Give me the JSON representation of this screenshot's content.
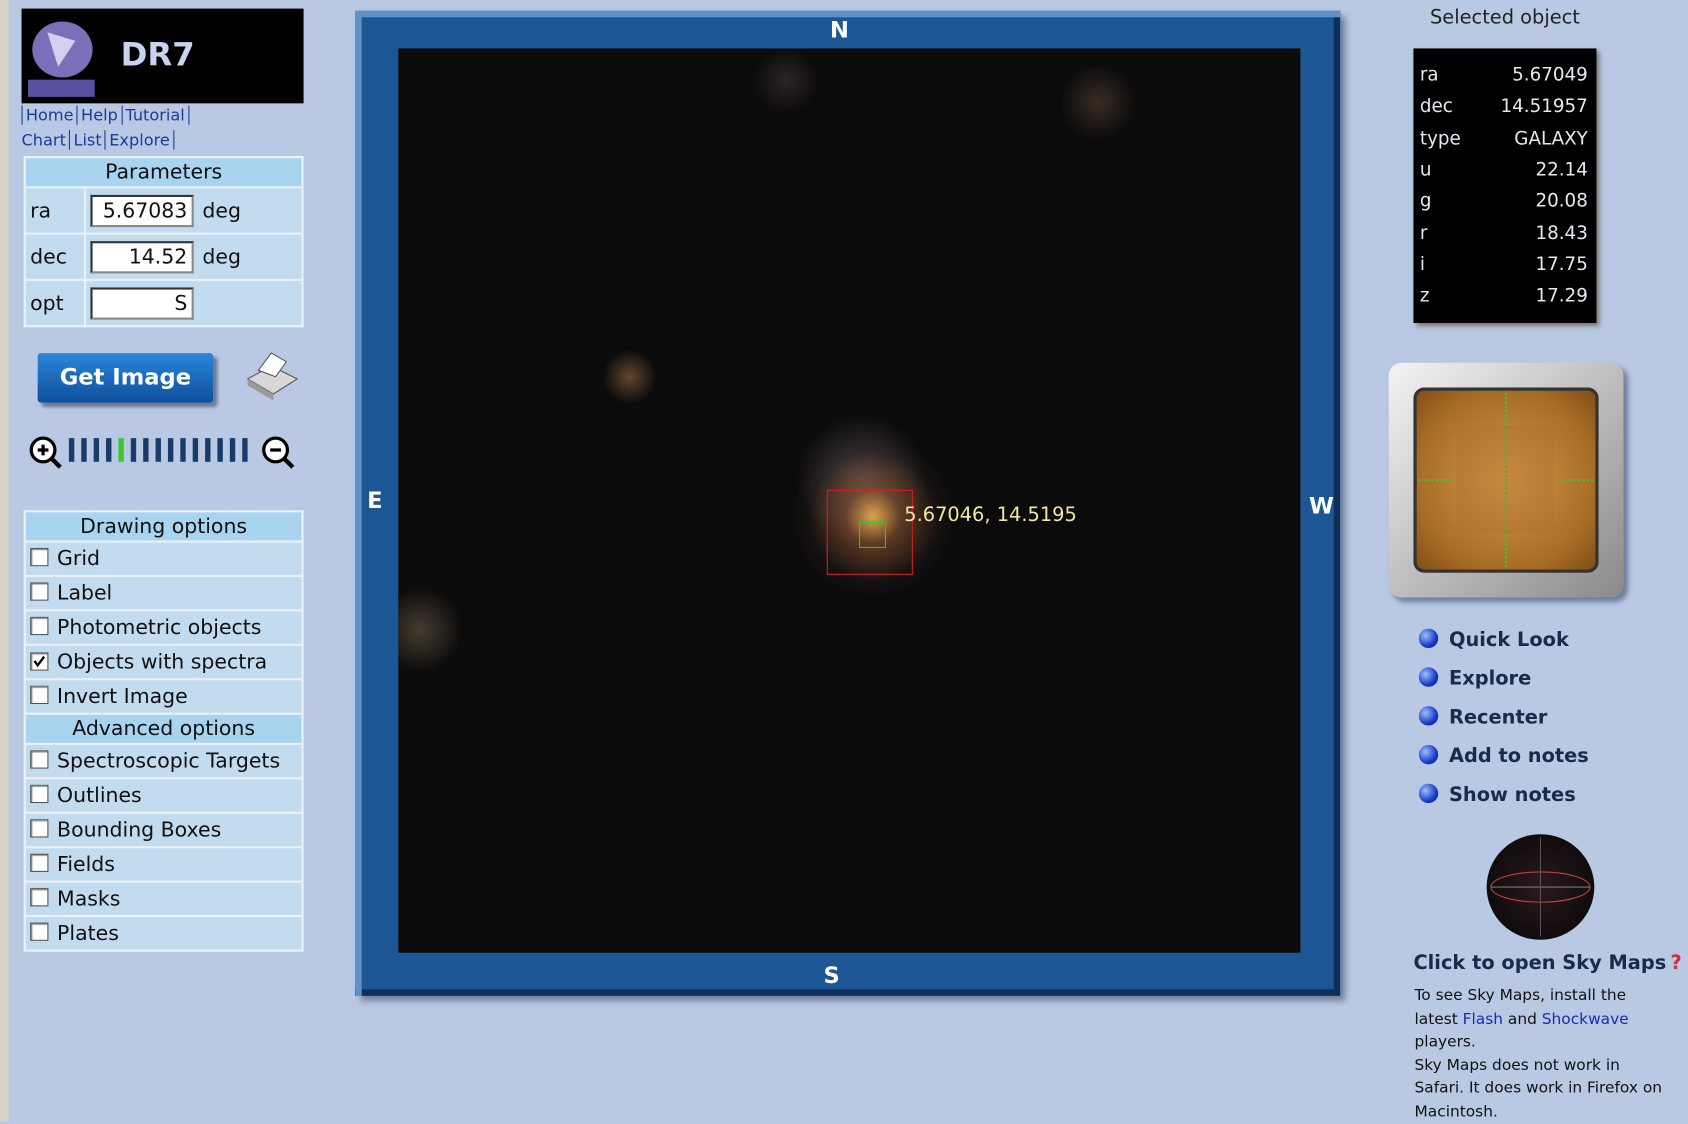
{
  "header": {
    "logo": "DR7",
    "link_rows": [
      [
        "Home",
        "Help",
        "Tutorial"
      ],
      [
        "Chart",
        "List",
        "Explore"
      ]
    ]
  },
  "parameters": {
    "title": "Parameters",
    "rows": [
      {
        "label": "ra",
        "value": "5.67083",
        "unit": "deg"
      },
      {
        "label": "dec",
        "value": "14.52",
        "unit": "deg"
      },
      {
        "label": "opt",
        "value": "S"
      }
    ]
  },
  "get_image": "Get Image",
  "drawing_options": {
    "title": "Drawing options",
    "items": [
      {
        "label": "Grid",
        "checked": false
      },
      {
        "label": "Label",
        "checked": false
      },
      {
        "label": "Photometric objects",
        "checked": false
      },
      {
        "label": "Objects with spectra",
        "checked": true
      },
      {
        "label": "Invert Image",
        "checked": false
      }
    ]
  },
  "advanced_options": {
    "title": "Advanced options",
    "items": [
      {
        "label": "Spectroscopic Targets",
        "checked": false
      },
      {
        "label": "Outlines",
        "checked": false
      },
      {
        "label": "Bounding Boxes",
        "checked": false
      },
      {
        "label": "Fields",
        "checked": false
      },
      {
        "label": "Masks",
        "checked": false
      },
      {
        "label": "Plates",
        "checked": false
      }
    ]
  },
  "viewer": {
    "north": "N",
    "south": "S",
    "east": "E",
    "west": "W",
    "marker_label": "5.67046, 14.5195"
  },
  "selected_object": {
    "title": "Selected object",
    "rows": [
      {
        "label": "ra",
        "value": "5.67049"
      },
      {
        "label": "dec",
        "value": "14.51957"
      },
      {
        "label": "type",
        "value": "GALAXY"
      },
      {
        "label": "u",
        "value": "22.14"
      },
      {
        "label": "g",
        "value": "20.08"
      },
      {
        "label": "r",
        "value": "18.43"
      },
      {
        "label": "i",
        "value": "17.75"
      },
      {
        "label": "z",
        "value": "17.29"
      }
    ]
  },
  "actions": [
    "Quick Look",
    "Explore",
    "Recenter",
    "Add to notes",
    "Show notes"
  ],
  "sky_maps": {
    "title": "Click to open Sky Maps",
    "help": "?",
    "notes": [
      [
        {
          "text": "To see Sky Maps, install the latest "
        },
        {
          "link": "Flash"
        },
        {
          "text": " and "
        },
        {
          "link": "Shockwave"
        },
        {
          "text": " players."
        }
      ],
      [
        {
          "text": "Sky Maps does not work in Safari. It does work in Firefox on Macintosh."
        }
      ]
    ]
  }
}
